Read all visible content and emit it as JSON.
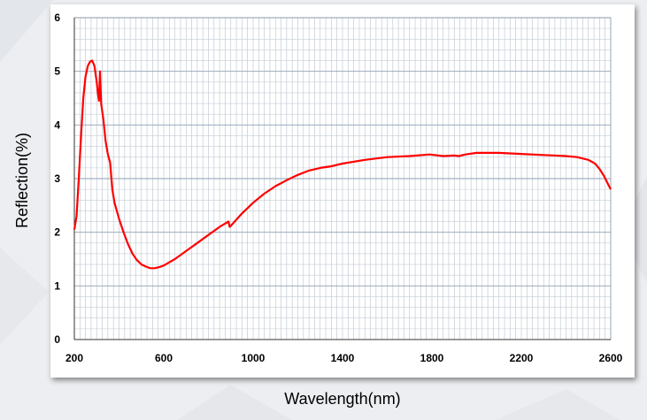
{
  "chart_data": {
    "type": "line",
    "title": "",
    "xlabel": "Wavelength(nm)",
    "ylabel": "Reflection(%)",
    "xlim": [
      200,
      2600
    ],
    "ylim": [
      0,
      6
    ],
    "xticks": [
      200,
      600,
      1000,
      1400,
      1800,
      2200,
      2600
    ],
    "yticks": [
      0,
      1,
      2,
      3,
      4,
      5,
      6
    ],
    "grid": true,
    "legend": "none",
    "series": [
      {
        "color": "#ff0000",
        "x": [
          200,
          210,
          220,
          230,
          240,
          250,
          260,
          270,
          280,
          290,
          300,
          305,
          310,
          315,
          320,
          330,
          340,
          350,
          360,
          370,
          380,
          400,
          420,
          440,
          460,
          480,
          500,
          520,
          540,
          560,
          580,
          600,
          650,
          700,
          750,
          800,
          850,
          890,
          895,
          900,
          950,
          1000,
          1050,
          1100,
          1150,
          1200,
          1250,
          1300,
          1350,
          1400,
          1500,
          1600,
          1700,
          1790,
          1850,
          1900,
          1920,
          1950,
          2000,
          2100,
          2200,
          2300,
          2400,
          2450,
          2500,
          2530,
          2550,
          2570,
          2590,
          2600
        ],
        "y": [
          2.05,
          2.3,
          3.0,
          3.8,
          4.5,
          4.9,
          5.1,
          5.18,
          5.2,
          5.1,
          4.8,
          4.6,
          4.45,
          5.0,
          4.4,
          4.1,
          3.7,
          3.45,
          3.3,
          2.8,
          2.55,
          2.25,
          2.0,
          1.78,
          1.6,
          1.48,
          1.4,
          1.36,
          1.33,
          1.33,
          1.35,
          1.38,
          1.5,
          1.65,
          1.8,
          1.95,
          2.1,
          2.2,
          2.1,
          2.12,
          2.35,
          2.55,
          2.72,
          2.86,
          2.97,
          3.07,
          3.15,
          3.2,
          3.23,
          3.28,
          3.35,
          3.4,
          3.42,
          3.45,
          3.42,
          3.43,
          3.42,
          3.45,
          3.48,
          3.48,
          3.46,
          3.44,
          3.42,
          3.4,
          3.35,
          3.28,
          3.18,
          3.05,
          2.88,
          2.8
        ]
      }
    ]
  }
}
